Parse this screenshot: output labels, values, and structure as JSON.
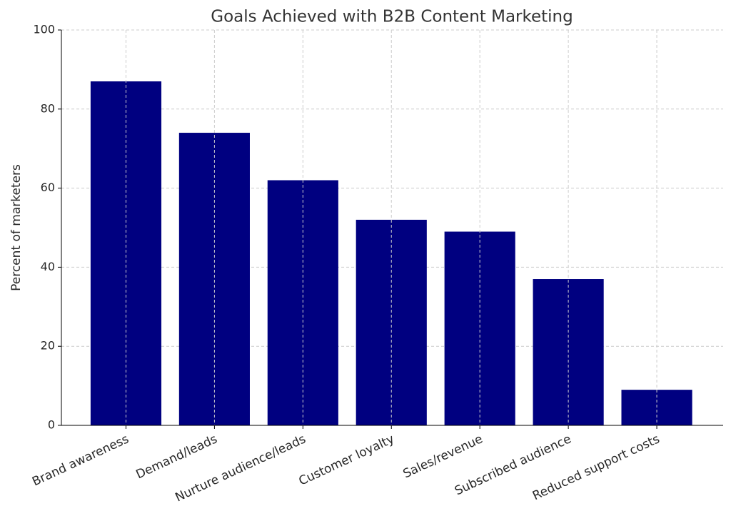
{
  "chart_data": {
    "type": "bar",
    "title": "Goals Achieved with B2B Content Marketing",
    "y_label": "Percent of marketers",
    "categories": [
      "Brand awareness",
      "Demand/leads",
      "Nurture audience/leads",
      "Customer loyalty",
      "Sales/revenue",
      "Subscribed audience",
      "Reduced support costs"
    ],
    "values": [
      87,
      74,
      62,
      52,
      49,
      37,
      9
    ],
    "color": "#000080",
    "ylim": [
      0,
      100
    ],
    "yticks": [
      0,
      20,
      40,
      60,
      80,
      100
    ],
    "grid": true
  }
}
